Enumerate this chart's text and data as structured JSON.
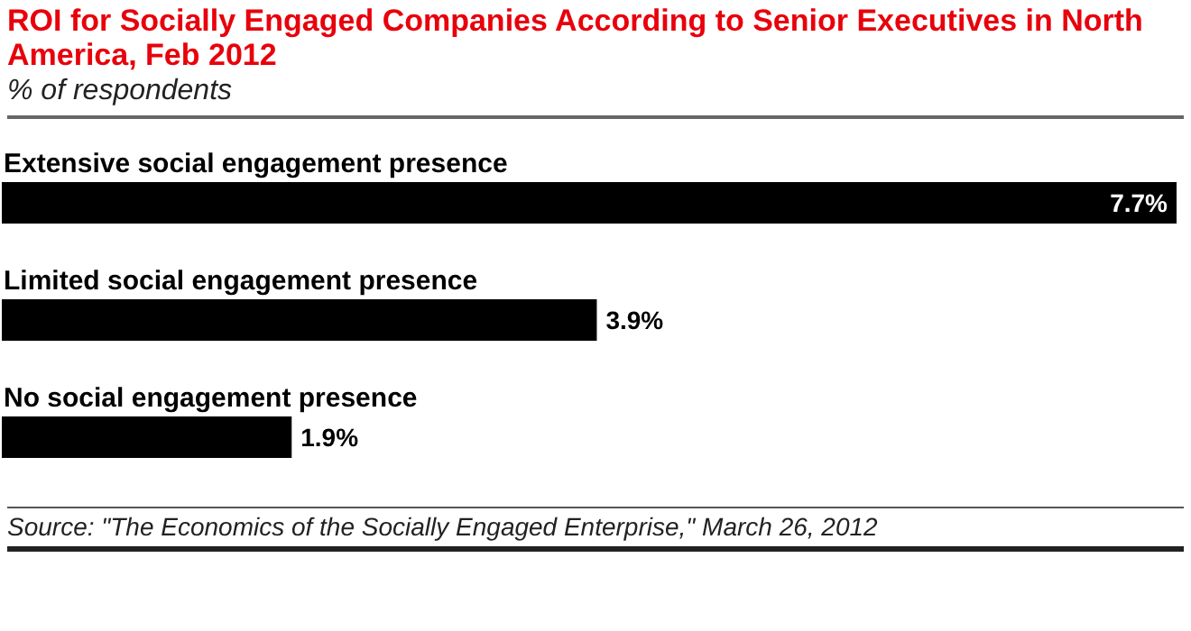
{
  "chart_data": {
    "type": "bar",
    "orientation": "horizontal",
    "title": "ROI for Socially Engaged Companies According to Senior Executives in North America, Feb 2012",
    "subtitle": "% of respondents",
    "categories": [
      "Extensive social engagement presence",
      "Limited social engagement presence",
      "No social engagement presence"
    ],
    "values": [
      7.7,
      3.9,
      1.9
    ],
    "color": "#000000",
    "value_labels": [
      "7.7%",
      "3.9%",
      "1.9%"
    ],
    "annotations": [
      "Source: \"The Economics of the Socially Engaged Enterprise,\" March 26, 2012"
    ]
  }
}
